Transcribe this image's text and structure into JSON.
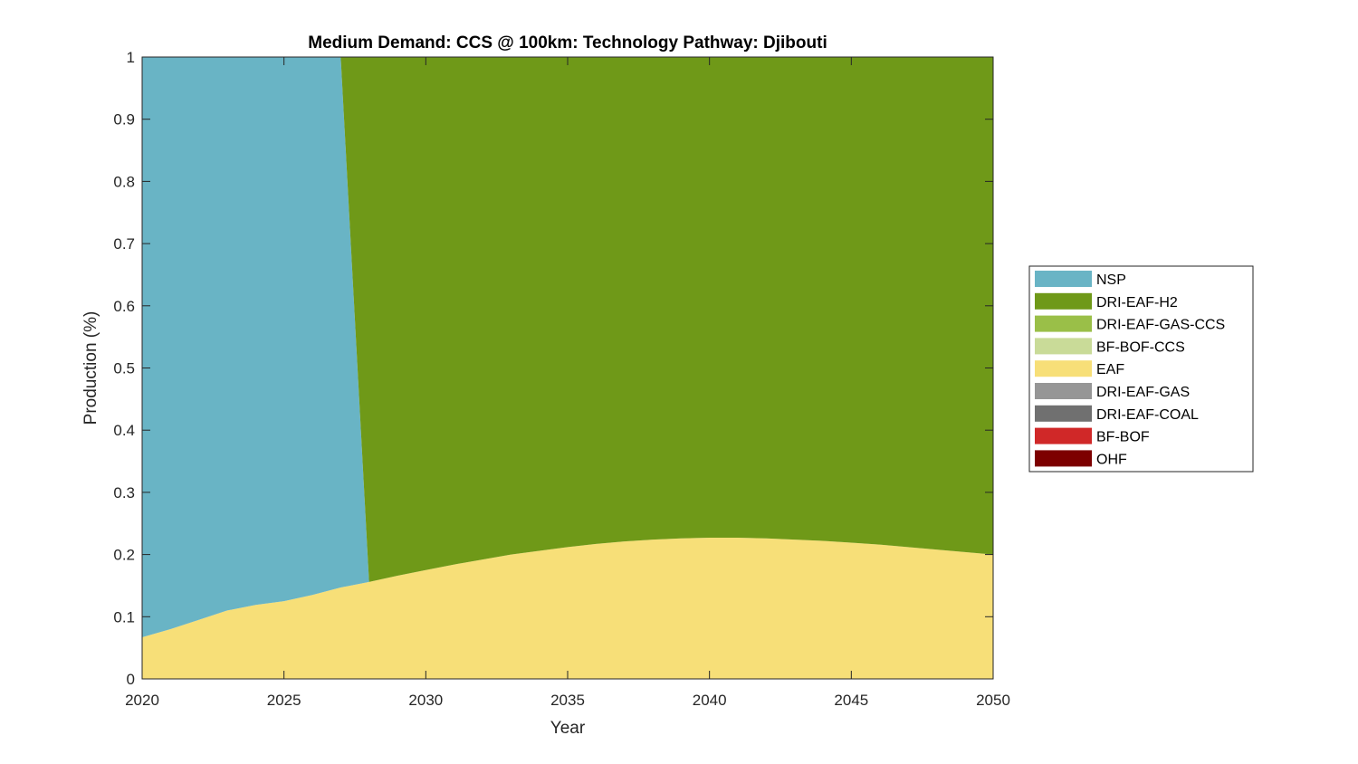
{
  "chart_data": {
    "type": "area",
    "title": "Medium Demand: CCS @ 100km: Technology Pathway: Djibouti",
    "xlabel": "Year",
    "ylabel": "Production (%)",
    "xlim": [
      2020,
      2050
    ],
    "ylim": [
      0,
      1
    ],
    "xticks": [
      2020,
      2025,
      2030,
      2035,
      2040,
      2045,
      2050
    ],
    "xtick_labels": [
      "2020",
      "2025",
      "2030",
      "2035",
      "2040",
      "2045",
      "2050"
    ],
    "yticks": [
      0,
      0.1,
      0.2,
      0.3,
      0.4,
      0.5,
      0.6,
      0.7,
      0.8,
      0.9,
      1
    ],
    "ytick_labels": [
      "0",
      "0.1",
      "0.2",
      "0.3",
      "0.4",
      "0.5",
      "0.6",
      "0.7",
      "0.8",
      "0.9",
      "1"
    ],
    "legend_position": "outside-right",
    "stack_order": "bottom-to-top: EAF, NSP, DRI-EAF-H2",
    "x": [
      2020,
      2021,
      2022,
      2023,
      2024,
      2025,
      2026,
      2027,
      2028,
      2029,
      2030,
      2031,
      2032,
      2033,
      2034,
      2035,
      2036,
      2037,
      2038,
      2039,
      2040,
      2041,
      2042,
      2043,
      2044,
      2045,
      2046,
      2047,
      2048,
      2049,
      2050
    ],
    "series": [
      {
        "name": "EAF",
        "color": "#F7DF78",
        "values": [
          0.067,
          0.08,
          0.095,
          0.11,
          0.119,
          0.125,
          0.135,
          0.147,
          0.156,
          0.166,
          0.175,
          0.184,
          0.192,
          0.2,
          0.206,
          0.212,
          0.217,
          0.221,
          0.224,
          0.226,
          0.227,
          0.227,
          0.226,
          0.224,
          0.222,
          0.219,
          0.216,
          0.212,
          0.208,
          0.204,
          0.2
        ]
      },
      {
        "name": "NSP",
        "color": "#69B4C5",
        "values": [
          0.933,
          0.92,
          0.905,
          0.89,
          0.881,
          0.875,
          0.865,
          0.853,
          0,
          0,
          0,
          0,
          0,
          0,
          0,
          0,
          0,
          0,
          0,
          0,
          0,
          0,
          0,
          0,
          0,
          0,
          0,
          0,
          0,
          0,
          0
        ]
      },
      {
        "name": "DRI-EAF-H2",
        "color": "#6F9918",
        "values": [
          0,
          0,
          0,
          0,
          0,
          0,
          0,
          0,
          0.844,
          0.834,
          0.825,
          0.816,
          0.808,
          0.8,
          0.794,
          0.788,
          0.783,
          0.779,
          0.776,
          0.774,
          0.773,
          0.773,
          0.774,
          0.776,
          0.778,
          0.781,
          0.784,
          0.788,
          0.792,
          0.796,
          0.8
        ]
      }
    ],
    "legend": [
      {
        "label": "NSP",
        "color": "#69B4C5"
      },
      {
        "label": "DRI-EAF-H2",
        "color": "#6F9918"
      },
      {
        "label": "DRI-EAF-GAS-CCS",
        "color": "#9ABF48"
      },
      {
        "label": "BF-BOF-CCS",
        "color": "#C9DB98"
      },
      {
        "label": "EAF",
        "color": "#F7DF78"
      },
      {
        "label": "DRI-EAF-GAS",
        "color": "#969696"
      },
      {
        "label": "DRI-EAF-COAL",
        "color": "#707070"
      },
      {
        "label": "BF-BOF",
        "color": "#D02828"
      },
      {
        "label": "OHF",
        "color": "#7D0000"
      }
    ]
  }
}
